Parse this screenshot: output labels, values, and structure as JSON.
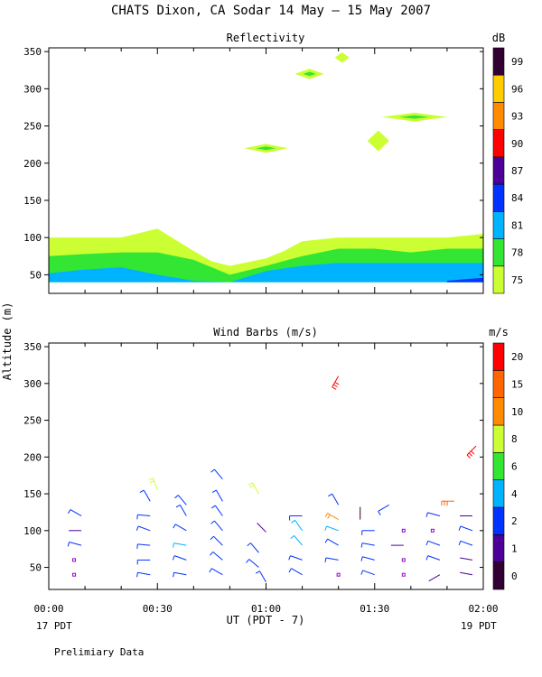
{
  "title": "CHATS Dixon, CA  Sodar  14 May – 15 May 2007",
  "ylabel": "Altitude (m)",
  "xlabel": "UT  (PDT - 7)",
  "left_date": "17 PDT",
  "right_date": "19 PDT",
  "footnote": "Prelimiary Data",
  "chart_data": [
    {
      "type": "heatmap",
      "title": "Reflectivity",
      "ylabel": "Altitude (m)",
      "xlabel": "UT  (PDT - 7)",
      "x_ticks": [
        "00:00",
        "00:30",
        "01:00",
        "01:30",
        "02:00"
      ],
      "xlim": [
        "00:00",
        "02:00"
      ],
      "y_ticks": [
        50,
        100,
        150,
        200,
        250,
        300,
        350
      ],
      "ylim": [
        25,
        355
      ],
      "colorbar": {
        "unit": "dB",
        "levels": [
          75,
          78,
          81,
          84,
          87,
          90,
          93,
          96,
          99
        ],
        "colors": [
          "#ccff33",
          "#33e633",
          "#00b3ff",
          "#0033ff",
          "#4d0099",
          "#ff0000",
          "#ff8c00",
          "#ffcc00",
          "#330033"
        ]
      },
      "layers": [
        {
          "level": 75,
          "color": "#ccff33",
          "x_min": [
            0,
            10,
            20,
            30,
            40,
            45,
            50,
            55,
            60,
            65,
            70,
            80,
            90,
            100,
            110,
            120
          ],
          "top": [
            100,
            100,
            100,
            112,
            82,
            68,
            62,
            67,
            72,
            82,
            95,
            100,
            100,
            100,
            100,
            105
          ]
        },
        {
          "level": 78,
          "color": "#33e633",
          "x_min": [
            0,
            10,
            20,
            30,
            40,
            50,
            60,
            70,
            80,
            90,
            100,
            110,
            120
          ],
          "top": [
            75,
            78,
            80,
            80,
            70,
            50,
            62,
            75,
            85,
            85,
            80,
            85,
            85
          ]
        },
        {
          "level": 81,
          "color": "#00b3ff",
          "x_min": [
            0,
            10,
            20,
            30,
            40,
            50,
            60,
            70,
            80,
            90,
            100,
            110,
            120
          ],
          "top": [
            52,
            57,
            60,
            50,
            42,
            40,
            55,
            62,
            66,
            66,
            66,
            66,
            66
          ]
        },
        {
          "level": 84,
          "color": "#0033ff",
          "x_min": [
            110,
            120
          ],
          "top": [
            42,
            46
          ]
        }
      ],
      "echoes": [
        {
          "x_min": 60,
          "y": 220,
          "half_width_min": 6,
          "half_height": 6,
          "level": 78
        },
        {
          "x_min": 72,
          "y": 320,
          "half_width_min": 4,
          "half_height": 7,
          "level": 78
        },
        {
          "x_min": 81,
          "y": 342,
          "half_width_min": 2,
          "half_height": 7,
          "level": 75
        },
        {
          "x_min": 101,
          "y": 262,
          "half_width_min": 9,
          "half_height": 6,
          "level": 78
        },
        {
          "x_min": 91,
          "y": 230,
          "half_width_min": 3,
          "half_height": 14,
          "level": 75
        }
      ]
    },
    {
      "type": "scatter",
      "title": "Wind Barbs (m/s)",
      "ylabel": "Altitude (m)",
      "xlabel": "UT  (PDT - 7)",
      "x_ticks": [
        "00:00",
        "00:30",
        "01:00",
        "01:30",
        "02:00"
      ],
      "xlim": [
        "00:00",
        "02:00"
      ],
      "y_ticks": [
        50,
        100,
        150,
        200,
        250,
        300,
        350
      ],
      "ylim": [
        20,
        355
      ],
      "colorbar": {
        "unit": "m/s",
        "levels": [
          0,
          1,
          2,
          4,
          6,
          8,
          10,
          15,
          20
        ],
        "colors": [
          "#330033",
          "#4d0099",
          "#0033ff",
          "#00b3ff",
          "#33e633",
          "#ccff33",
          "#ff8c00",
          "#ff6600",
          "#ff0000"
        ]
      },
      "barbs": [
        {
          "x_min": 7,
          "y": 40,
          "speed": 0.5,
          "dir": 0,
          "calm": true
        },
        {
          "x_min": 7,
          "y": 60,
          "speed": 0.5,
          "dir": 0,
          "calm": true
        },
        {
          "x_min": 9,
          "y": 80,
          "speed": 3,
          "dir": 285
        },
        {
          "x_min": 9,
          "y": 100,
          "speed": 1.5,
          "dir": 270
        },
        {
          "x_min": 9,
          "y": 120,
          "speed": 3,
          "dir": 300
        },
        {
          "x_min": 28,
          "y": 40,
          "speed": 3,
          "dir": 280
        },
        {
          "x_min": 28,
          "y": 60,
          "speed": 3,
          "dir": 270
        },
        {
          "x_min": 28,
          "y": 80,
          "speed": 3,
          "dir": 275
        },
        {
          "x_min": 28,
          "y": 100,
          "speed": 3,
          "dir": 290
        },
        {
          "x_min": 28,
          "y": 120,
          "speed": 3,
          "dir": 275
        },
        {
          "x_min": 28,
          "y": 140,
          "speed": 3,
          "dir": 330
        },
        {
          "x_min": 30,
          "y": 155,
          "speed": 8,
          "dir": 340
        },
        {
          "x_min": 38,
          "y": 40,
          "speed": 3,
          "dir": 280
        },
        {
          "x_min": 38,
          "y": 60,
          "speed": 3,
          "dir": 290
        },
        {
          "x_min": 38,
          "y": 80,
          "speed": 5,
          "dir": 280
        },
        {
          "x_min": 38,
          "y": 100,
          "speed": 3,
          "dir": 300
        },
        {
          "x_min": 38,
          "y": 120,
          "speed": 3,
          "dir": 330
        },
        {
          "x_min": 38,
          "y": 135,
          "speed": 3,
          "dir": 320
        },
        {
          "x_min": 48,
          "y": 40,
          "speed": 3,
          "dir": 300
        },
        {
          "x_min": 48,
          "y": 60,
          "speed": 3,
          "dir": 310
        },
        {
          "x_min": 48,
          "y": 80,
          "speed": 3,
          "dir": 315
        },
        {
          "x_min": 48,
          "y": 100,
          "speed": 3,
          "dir": 320
        },
        {
          "x_min": 48,
          "y": 120,
          "speed": 3,
          "dir": 325
        },
        {
          "x_min": 48,
          "y": 140,
          "speed": 3,
          "dir": 330
        },
        {
          "x_min": 48,
          "y": 170,
          "speed": 3,
          "dir": 320
        },
        {
          "x_min": 60,
          "y": 30,
          "speed": 3,
          "dir": 330
        },
        {
          "x_min": 58,
          "y": 50,
          "speed": 3,
          "dir": 310
        },
        {
          "x_min": 58,
          "y": 70,
          "speed": 3,
          "dir": 320
        },
        {
          "x_min": 60,
          "y": 98,
          "speed": 1.5,
          "dir": 315
        },
        {
          "x_min": 58,
          "y": 150,
          "speed": 8,
          "dir": 330
        },
        {
          "x_min": 70,
          "y": 40,
          "speed": 3,
          "dir": 300
        },
        {
          "x_min": 70,
          "y": 60,
          "speed": 3,
          "dir": 290
        },
        {
          "x_min": 70,
          "y": 80,
          "speed": 5,
          "dir": 320
        },
        {
          "x_min": 70,
          "y": 100,
          "speed": 4,
          "dir": 325
        },
        {
          "x_min": 70,
          "y": 120,
          "speed": 3,
          "dir": 270
        },
        {
          "x_min": 80,
          "y": 40,
          "speed": 0.5,
          "dir": 0,
          "calm": true
        },
        {
          "x_min": 80,
          "y": 60,
          "speed": 3,
          "dir": 280
        },
        {
          "x_min": 80,
          "y": 80,
          "speed": 3,
          "dir": 300
        },
        {
          "x_min": 80,
          "y": 100,
          "speed": 5,
          "dir": 290
        },
        {
          "x_min": 80,
          "y": 115,
          "speed": 10,
          "dir": 300
        },
        {
          "x_min": 80,
          "y": 135,
          "speed": 3,
          "dir": 330
        },
        {
          "x_min": 86,
          "y": 115,
          "speed": 0.5,
          "dir": 360
        },
        {
          "x_min": 80,
          "y": 310,
          "speed": 20,
          "dir": 210
        },
        {
          "x_min": 90,
          "y": 40,
          "speed": 3,
          "dir": 290
        },
        {
          "x_min": 90,
          "y": 60,
          "speed": 3,
          "dir": 285
        },
        {
          "x_min": 90,
          "y": 80,
          "speed": 3,
          "dir": 280
        },
        {
          "x_min": 90,
          "y": 100,
          "speed": 3,
          "dir": 270
        },
        {
          "x_min": 94,
          "y": 135,
          "speed": 3,
          "dir": 240
        },
        {
          "x_min": 98,
          "y": 40,
          "speed": 0.5,
          "dir": 0,
          "calm": true
        },
        {
          "x_min": 98,
          "y": 60,
          "speed": 0.5,
          "dir": 0,
          "calm": true
        },
        {
          "x_min": 98,
          "y": 80,
          "speed": 1.5,
          "dir": 270
        },
        {
          "x_min": 98,
          "y": 100,
          "speed": 0.5,
          "dir": 0,
          "calm": true
        },
        {
          "x_min": 108,
          "y": 40,
          "speed": 1.5,
          "dir": 240
        },
        {
          "x_min": 108,
          "y": 60,
          "speed": 3,
          "dir": 290
        },
        {
          "x_min": 108,
          "y": 80,
          "speed": 3,
          "dir": 290
        },
        {
          "x_min": 106,
          "y": 100,
          "speed": 0.5,
          "dir": 0,
          "calm": true
        },
        {
          "x_min": 108,
          "y": 120,
          "speed": 3,
          "dir": 285
        },
        {
          "x_min": 112,
          "y": 140,
          "speed": 15,
          "dir": 270
        },
        {
          "x_min": 117,
          "y": 40,
          "speed": 1.5,
          "dir": 280
        },
        {
          "x_min": 117,
          "y": 60,
          "speed": 1.5,
          "dir": 280
        },
        {
          "x_min": 117,
          "y": 80,
          "speed": 3,
          "dir": 290
        },
        {
          "x_min": 117,
          "y": 100,
          "speed": 3,
          "dir": 290
        },
        {
          "x_min": 117,
          "y": 120,
          "speed": 1.5,
          "dir": 270
        },
        {
          "x_min": 118,
          "y": 215,
          "speed": 20,
          "dir": 225
        }
      ]
    }
  ]
}
